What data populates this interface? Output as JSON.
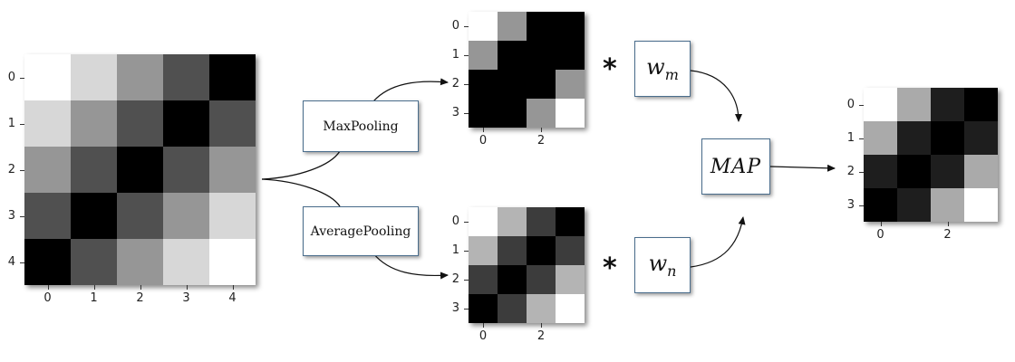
{
  "matrices": {
    "input": {
      "values": [
        [
          255,
          215,
          150,
          80,
          0
        ],
        [
          215,
          150,
          80,
          0,
          80
        ],
        [
          150,
          80,
          0,
          80,
          150
        ],
        [
          80,
          0,
          80,
          150,
          215
        ],
        [
          0,
          80,
          150,
          215,
          255
        ]
      ],
      "y_ticks": [
        "0",
        "1",
        "2",
        "3",
        "4"
      ],
      "x_ticks": [
        "0",
        "1",
        "2",
        "3",
        "4"
      ]
    },
    "maxpool": {
      "values": [
        [
          255,
          150,
          0,
          0
        ],
        [
          150,
          0,
          0,
          0
        ],
        [
          0,
          0,
          0,
          150
        ],
        [
          0,
          0,
          150,
          255
        ]
      ],
      "y_ticks": [
        "0",
        "1",
        "2",
        "3"
      ],
      "x_ticks": [
        "0",
        "2"
      ]
    },
    "avgpool": {
      "values": [
        [
          255,
          180,
          60,
          0
        ],
        [
          180,
          60,
          0,
          60
        ],
        [
          60,
          0,
          60,
          180
        ],
        [
          0,
          60,
          180,
          255
        ]
      ],
      "y_ticks": [
        "0",
        "1",
        "2",
        "3"
      ],
      "x_ticks": [
        "0",
        "2"
      ]
    },
    "output": {
      "values": [
        [
          255,
          170,
          30,
          0
        ],
        [
          170,
          30,
          0,
          30
        ],
        [
          30,
          0,
          30,
          170
        ],
        [
          0,
          30,
          170,
          255
        ]
      ],
      "y_ticks": [
        "0",
        "1",
        "2",
        "3"
      ],
      "x_ticks": [
        "0",
        "2"
      ]
    }
  },
  "operations": {
    "maxpool_label": "MaxPooling",
    "avgpool_label": "AveragePooling",
    "multiply_symbol": "*",
    "wm_base": "w",
    "wm_sub": "m",
    "wn_base": "w",
    "wn_sub": "n",
    "map_label": "MAP"
  },
  "colors": {
    "box_border": "#4a6d8c",
    "arrow": "#111111"
  }
}
